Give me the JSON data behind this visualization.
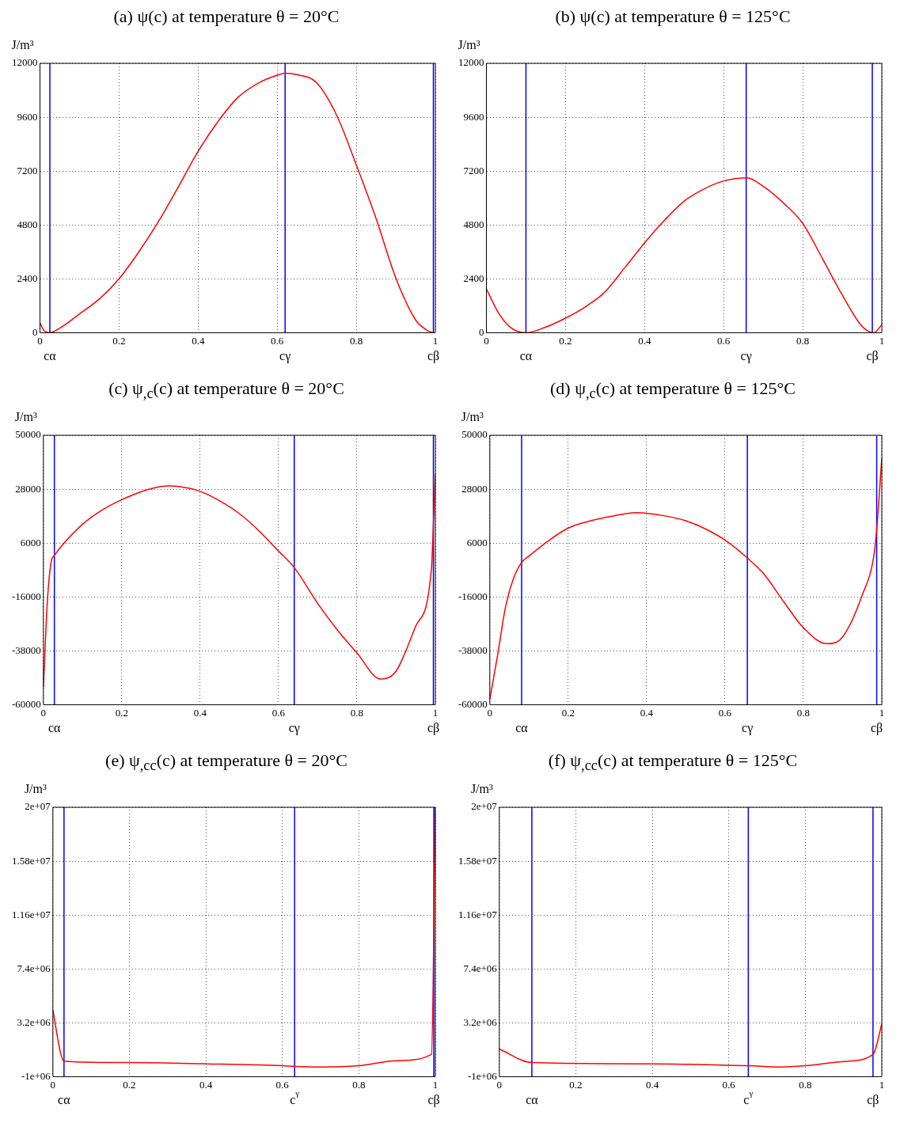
{
  "chart_data": [
    {
      "type": "line",
      "title": "(a) ψ(c) at temperature θ = 20°C",
      "ylabel": "J/m³",
      "x": [
        0,
        0.01,
        0.025,
        0.05,
        0.1,
        0.15,
        0.2,
        0.25,
        0.3,
        0.35,
        0.4,
        0.45,
        0.5,
        0.55,
        0.6,
        0.62,
        0.65,
        0.7,
        0.75,
        0.8,
        0.85,
        0.9,
        0.95,
        0.98,
        0.995
      ],
      "series": [
        {
          "color": "#ff0000",
          "values": [
            440,
            100,
            0,
            200,
            840,
            1500,
            2400,
            3600,
            4960,
            6500,
            8080,
            9400,
            10470,
            11100,
            11470,
            11560,
            11500,
            11130,
            9700,
            7480,
            5090,
            2440,
            570,
            100,
            0
          ]
        }
      ],
      "xlim": [
        0,
        1
      ],
      "ylim": [
        0,
        12000
      ],
      "xticks": [
        0,
        0.2,
        0.4,
        0.6,
        0.8,
        1
      ],
      "yticks": [
        0,
        2400,
        4800,
        7200,
        9600,
        12000
      ],
      "grid": true,
      "marker": "none",
      "line_style": "solid",
      "ref_lines": [
        {
          "axis": "x",
          "value": 0.025,
          "label": "cα",
          "color": "#0000ff"
        },
        {
          "axis": "x",
          "value": 0.62,
          "label": "cγ",
          "color": "#0000ff"
        },
        {
          "axis": "x",
          "value": 0.995,
          "label": "cβ",
          "color": "#0000ff"
        }
      ]
    },
    {
      "type": "line",
      "title": "(b) ψ(c) at temperature θ = 125°C",
      "ylabel": "J/m³",
      "x": [
        0,
        0.03,
        0.06,
        0.1,
        0.15,
        0.2,
        0.25,
        0.3,
        0.35,
        0.4,
        0.45,
        0.5,
        0.55,
        0.6,
        0.66,
        0.7,
        0.75,
        0.8,
        0.85,
        0.9,
        0.95,
        0.98,
        1
      ],
      "series": [
        {
          "color": "#ff0000",
          "values": [
            1950,
            900,
            250,
            0,
            250,
            650,
            1150,
            1820,
            2900,
            4000,
            5000,
            5860,
            6400,
            6760,
            6900,
            6520,
            5800,
            4870,
            3300,
            1680,
            290,
            0,
            360
          ]
        }
      ],
      "xlim": [
        0,
        1
      ],
      "ylim": [
        0,
        12000
      ],
      "xticks": [
        0,
        0.2,
        0.4,
        0.6,
        0.8,
        1
      ],
      "yticks": [
        0,
        2400,
        4800,
        7200,
        9600,
        12000
      ],
      "grid": true,
      "marker": "none",
      "line_style": "solid",
      "ref_lines": [
        {
          "axis": "x",
          "value": 0.1,
          "label": "cα",
          "color": "#0000ff"
        },
        {
          "axis": "x",
          "value": 0.657,
          "label": "cγ",
          "color": "#0000ff"
        },
        {
          "axis": "x",
          "value": 0.976,
          "label": "cβ",
          "color": "#0000ff"
        }
      ]
    },
    {
      "type": "line",
      "title": "(c) ψ$_{,c}$(c) at temperature θ = 20°C",
      "ylabel": "J/m³",
      "x": [
        0,
        0.01,
        0.02,
        0.028,
        0.05,
        0.1,
        0.15,
        0.2,
        0.25,
        0.3,
        0.32,
        0.35,
        0.4,
        0.45,
        0.5,
        0.55,
        0.6,
        0.64,
        0.7,
        0.75,
        0.8,
        0.86,
        0.9,
        0.95,
        0.99,
        0.995,
        1
      ],
      "series": [
        {
          "color": "#ff0000",
          "values": [
            -52900,
            -18100,
            -1600,
            900,
            5500,
            13700,
            19500,
            23700,
            27000,
            29100,
            29300,
            29000,
            27100,
            23200,
            18000,
            11000,
            2700,
            -4000,
            -18700,
            -29500,
            -38900,
            -49500,
            -46200,
            -27900,
            -4600,
            13700,
            34200
          ]
        }
      ],
      "xlim": [
        0,
        1
      ],
      "ylim": [
        -60000,
        50000
      ],
      "xticks": [
        0,
        0.2,
        0.4,
        0.6,
        0.8,
        1
      ],
      "yticks": [
        -60000,
        -38000,
        -16000,
        6000,
        28000,
        50000
      ],
      "grid": true,
      "marker": "none",
      "line_style": "solid",
      "ref_lines": [
        {
          "axis": "x",
          "value": 0.028,
          "label": "cα",
          "color": "#0000ff"
        },
        {
          "axis": "x",
          "value": 0.64,
          "label": "cγ",
          "color": "#0000ff"
        },
        {
          "axis": "x",
          "value": 0.995,
          "label": "cβ",
          "color": "#0000ff"
        }
      ]
    },
    {
      "type": "line",
      "title": "(d) ψ$_{,c}$(c) at temperature θ = 125°C",
      "ylabel": "J/m³",
      "x": [
        0,
        0.02,
        0.04,
        0.06,
        0.081,
        0.1,
        0.15,
        0.2,
        0.25,
        0.3,
        0.375,
        0.4,
        0.45,
        0.5,
        0.55,
        0.6,
        0.657,
        0.7,
        0.75,
        0.8,
        0.86,
        0.9,
        0.95,
        0.98,
        0.987,
        1
      ],
      "series": [
        {
          "color": "#ff0000",
          "values": [
            -57800,
            -39600,
            -20100,
            -8600,
            -1900,
            700,
            7000,
            12100,
            14800,
            16600,
            18400,
            18200,
            17000,
            15100,
            11800,
            7200,
            -100,
            -6800,
            -18000,
            -28600,
            -35100,
            -32300,
            -15300,
            1100,
            11500,
            40600
          ]
        }
      ],
      "xlim": [
        0,
        1
      ],
      "ylim": [
        -60000,
        50000
      ],
      "xticks": [
        0,
        0.2,
        0.4,
        0.6,
        0.8,
        1
      ],
      "yticks": [
        -60000,
        -38000,
        -16000,
        6000,
        28000,
        50000
      ],
      "grid": true,
      "marker": "none",
      "line_style": "solid",
      "ref_lines": [
        {
          "axis": "x",
          "value": 0.081,
          "label": "cα",
          "color": "#0000ff"
        },
        {
          "axis": "x",
          "value": 0.657,
          "label": "cγ",
          "color": "#0000ff"
        },
        {
          "axis": "x",
          "value": 0.987,
          "label": "cβ",
          "color": "#0000ff"
        }
      ]
    },
    {
      "type": "line",
      "title": "(e) ψ$_{,cc}$(c) at temperature θ = 20°C",
      "ylabel": "J/m³",
      "x": [
        0,
        0.02,
        0.029,
        0.2,
        0.4,
        0.6,
        0.632,
        0.7,
        0.8,
        0.9,
        0.99,
        1
      ],
      "series": [
        {
          "color": "#ff0000",
          "values": [
            4200000,
            850000,
            200000,
            100000,
            0,
            -150000,
            -200000,
            -250000,
            -150000,
            250000,
            750000,
            20000000
          ]
        }
      ],
      "xlim": [
        0,
        1
      ],
      "ylim": [
        -1000000,
        20000000
      ],
      "xticks": [
        0,
        0.2,
        0.4,
        0.6,
        0.8,
        1
      ],
      "yticks": [
        {
          "value": -1000000,
          "label": "-1e+06"
        },
        {
          "value": 3200000,
          "label": "3.2e+06"
        },
        {
          "value": 7400000,
          "label": "7.4e+06"
        },
        {
          "value": 11600000,
          "label": "1.16e+07"
        },
        {
          "value": 15800000,
          "label": "1.58e+07"
        },
        {
          "value": 20000000,
          "label": "2e+07"
        }
      ],
      "grid": true,
      "marker": "none",
      "line_style": "solid",
      "ref_lines": [
        {
          "axis": "x",
          "value": 0.029,
          "label": "cα",
          "color": "#0000ff"
        },
        {
          "axis": "x",
          "value": 0.632,
          "label": "c$^{γ}$",
          "color": "#0000ff"
        },
        {
          "axis": "x",
          "value": 0.996,
          "label": "cβ",
          "color": "#0000ff"
        }
      ]
    },
    {
      "type": "line",
      "title": "(f) ψ$_{,cc}$(c) at temperature θ = 125°C",
      "ylabel": "J/m³",
      "x": [
        0,
        0.085,
        0.4,
        0.651,
        0.73,
        0.8,
        0.9,
        0.977,
        1
      ],
      "series": [
        {
          "color": "#ff0000",
          "values": [
            1150000,
            100000,
            0,
            -150000,
            -250000,
            -150000,
            180000,
            730000,
            3100000
          ]
        }
      ],
      "xlim": [
        0,
        1
      ],
      "ylim": [
        -1000000,
        20000000
      ],
      "xticks": [
        0,
        0.2,
        0.4,
        0.6,
        0.8,
        1
      ],
      "yticks": [
        {
          "value": -1000000,
          "label": "-1e+06"
        },
        {
          "value": 3200000,
          "label": "3.2e+06"
        },
        {
          "value": 7400000,
          "label": "7.4e+06"
        },
        {
          "value": 11600000,
          "label": "1.16e+07"
        },
        {
          "value": 15800000,
          "label": "1.58e+07"
        },
        {
          "value": 20000000,
          "label": "2e+07"
        }
      ],
      "grid": true,
      "marker": "none",
      "line_style": "solid",
      "ref_lines": [
        {
          "axis": "x",
          "value": 0.085,
          "label": "cα",
          "color": "#0000ff"
        },
        {
          "axis": "x",
          "value": 0.651,
          "label": "c$^{γ}$",
          "color": "#0000ff"
        },
        {
          "axis": "x",
          "value": 0.977,
          "label": "cβ",
          "color": "#0000ff"
        }
      ]
    }
  ]
}
